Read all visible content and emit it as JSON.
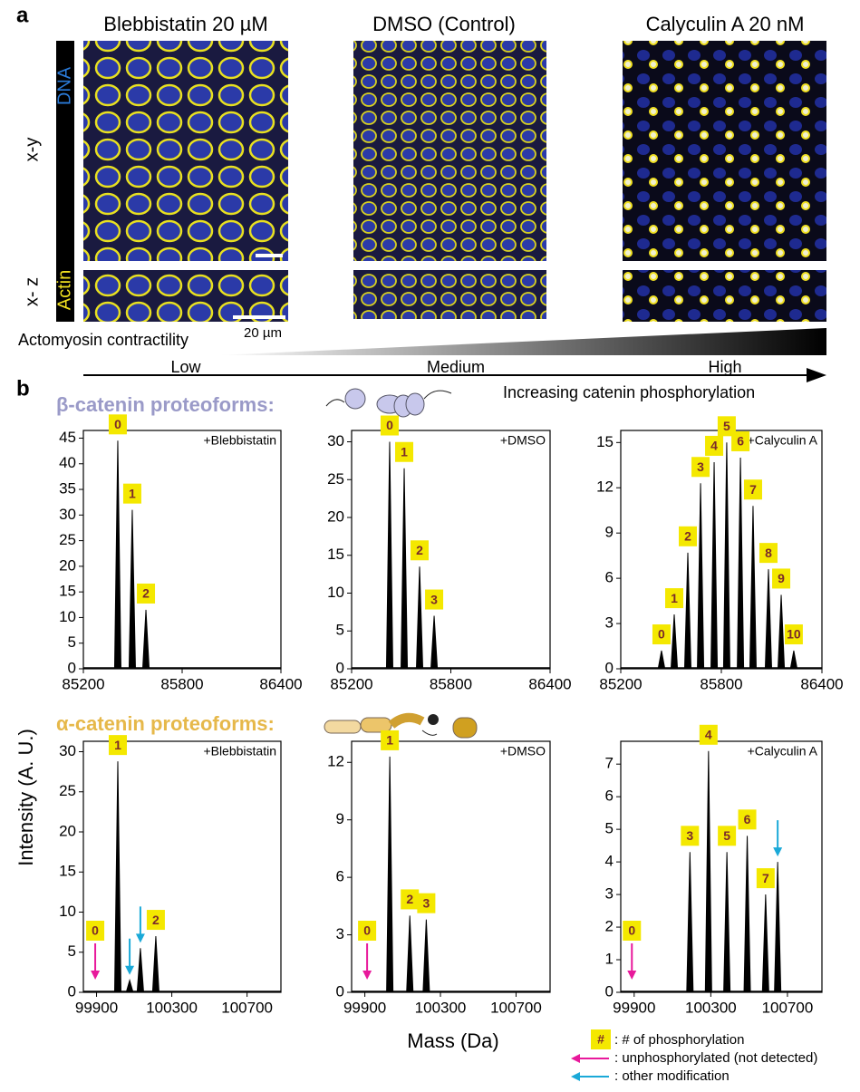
{
  "figure": {
    "panel_a": "a",
    "panel_b": "b",
    "conditions": [
      "Blebbistatin 20 µM",
      "DMSO (Control)",
      "Calyculin A 20 nM"
    ],
    "views": [
      "x-y",
      "x- z"
    ],
    "stains": [
      "DNA",
      "Actin"
    ],
    "scale_bar": "20 µm",
    "contractility": "Actomyosin contractility",
    "levels": [
      "Low",
      "Medium",
      "High"
    ],
    "phospho_axis": "Increasing catenin phosphorylation",
    "beta_title": "β-catenin proteoforms:",
    "alpha_title": "α-catenin proteoforms:",
    "y_label": "Intensity (A. U.)",
    "x_label": "Mass (Da)",
    "legend": {
      "symbol": "#",
      "phospho": ": # of phosphorylation",
      "unphos": ": unphosphorylated (not detected)",
      "other": ": other modification"
    }
  },
  "chart_data": [
    {
      "type": "spectrum",
      "annotation": "+Blebbistatin",
      "color": "#000000",
      "x": [
        85409,
        85497,
        85580
      ],
      "values": [
        44.5,
        31,
        11.5
      ],
      "peak_labels": [
        "0",
        "1",
        "2"
      ],
      "xlim": [
        85200,
        86400
      ],
      "xticks": [
        85200,
        85800,
        86400
      ],
      "ylim": [
        0,
        46.5
      ],
      "yticks": [
        0,
        5,
        10,
        15,
        20,
        25,
        30,
        35,
        40,
        45
      ],
      "markers": []
    },
    {
      "type": "spectrum",
      "annotation": "+DMSO",
      "color": "#000000",
      "x": [
        85430,
        85518,
        85611,
        85699
      ],
      "values": [
        30,
        26.5,
        13.5,
        7
      ],
      "peak_labels": [
        "0",
        "1",
        "2",
        "3"
      ],
      "xlim": [
        85200,
        86400
      ],
      "xticks": [
        85200,
        85800,
        86400
      ],
      "ylim": [
        0,
        31.5
      ],
      "yticks": [
        0,
        5,
        10,
        15,
        20,
        25,
        30
      ],
      "markers": []
    },
    {
      "type": "spectrum",
      "annotation": "+Calyculin A",
      "color": "#000000",
      "x": [
        85443,
        85519,
        85600,
        85676,
        85757,
        85832,
        85914,
        85989,
        86081,
        86157,
        86232
      ],
      "values": [
        1.2,
        3.6,
        7.7,
        12.3,
        13.7,
        15,
        14,
        10.8,
        6.6,
        4.9,
        1.2
      ],
      "peak_labels": [
        "0",
        "1",
        "2",
        "3",
        "4",
        "5",
        "6",
        "7",
        "8",
        "9",
        "10"
      ],
      "xlim": [
        85200,
        86400
      ],
      "xticks": [
        85200,
        85800,
        86400
      ],
      "ylim": [
        0,
        15.8
      ],
      "yticks": [
        0,
        3,
        6,
        9,
        12,
        15
      ],
      "markers": []
    },
    {
      "type": "spectrum",
      "annotation": "+Blebbistatin",
      "color": "#000000",
      "x": [
        100013,
        100076,
        100133,
        100215
      ],
      "values": [
        28.8,
        1.5,
        5.5,
        7
      ],
      "peak_labels": [
        "1",
        null,
        null,
        "2"
      ],
      "xlim": [
        99830,
        100880
      ],
      "xticks": [
        99900,
        100300,
        100700
      ],
      "ylim": [
        0,
        31.3
      ],
      "yticks": [
        0,
        5,
        10,
        15,
        20,
        25,
        30
      ],
      "markers": [
        {
          "label": "0",
          "x": 99893,
          "color": "#e8199b"
        },
        {
          "x": 100076,
          "color": "#1aa9d8"
        },
        {
          "x": 100133,
          "color": "#1aa9d8"
        }
      ]
    },
    {
      "type": "spectrum",
      "annotation": "+DMSO",
      "color": "#000000",
      "x": [
        100032,
        100138,
        100225
      ],
      "values": [
        12.3,
        4,
        3.8
      ],
      "peak_labels": [
        "1",
        "2",
        "3"
      ],
      "xlim": [
        99830,
        100880
      ],
      "xticks": [
        99900,
        100300,
        100700
      ],
      "ylim": [
        0,
        13.1
      ],
      "yticks": [
        0,
        3,
        6,
        9,
        12
      ],
      "markers": [
        {
          "label": "0",
          "x": 99912,
          "color": "#e8199b"
        }
      ]
    },
    {
      "type": "spectrum",
      "annotation": "+Calyculin A",
      "color": "#000000",
      "x": [
        100191,
        100288,
        100384,
        100490,
        100586,
        100649
      ],
      "values": [
        4.3,
        7.4,
        4.3,
        4.8,
        3,
        4
      ],
      "peak_labels": [
        "3",
        "4",
        "5",
        "6",
        "7",
        null
      ],
      "xlim": [
        99830,
        100880
      ],
      "xticks": [
        99900,
        100300,
        100700
      ],
      "ylim": [
        0,
        7.7
      ],
      "yticks": [
        0,
        1,
        2,
        3,
        4,
        5,
        6,
        7
      ],
      "markers": [
        {
          "label": "0",
          "x": 99888,
          "color": "#e8199b"
        },
        {
          "x": 100649,
          "color": "#1aa9d8"
        }
      ]
    }
  ]
}
